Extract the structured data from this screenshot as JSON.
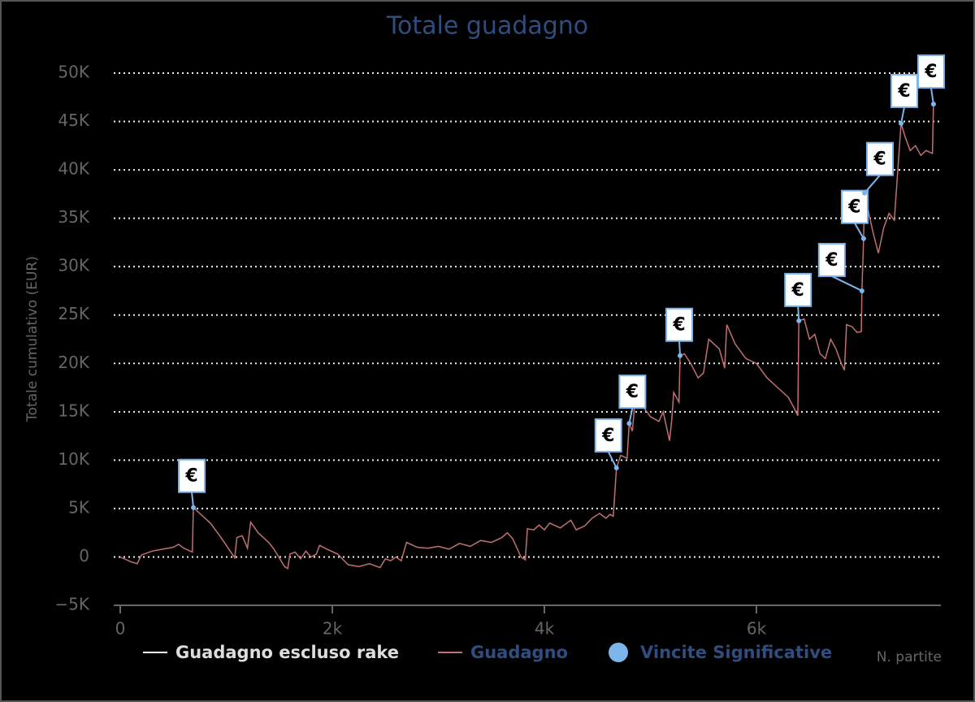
{
  "chart_data": {
    "type": "line",
    "title": "Totale guadagno",
    "y_axis_label": "Totale cumulativo (EUR)",
    "x_axis_label": "N. partite",
    "xlim": [
      0,
      7740
    ],
    "xticks": [
      0,
      {
        "value": 2000,
        "label": "2k"
      },
      {
        "value": 4000,
        "label": "4k"
      },
      {
        "value": 6000,
        "label": "6k"
      }
    ],
    "ylim": [
      -5000,
      50000
    ],
    "yticks": [
      {
        "value": -5000,
        "label": "−5K"
      },
      0,
      {
        "value": 5000,
        "label": "5K"
      },
      {
        "value": 10000,
        "label": "10K"
      },
      {
        "value": 15000,
        "label": "15K"
      },
      {
        "value": 20000,
        "label": "20K"
      },
      {
        "value": 25000,
        "label": "25K"
      },
      {
        "value": 30000,
        "label": "30K"
      },
      {
        "value": 35000,
        "label": "35K"
      },
      {
        "value": 40000,
        "label": "40K"
      },
      {
        "value": 45000,
        "label": "45K"
      },
      {
        "value": 50000,
        "label": "50K"
      }
    ],
    "grid": true,
    "series": [
      {
        "name": "Guadagno escluso rake",
        "color": "#ffffff",
        "visible": false
      },
      {
        "name": "Guadagno",
        "color": "#c07070",
        "x": [
          0,
          100,
          160,
          200,
          300,
          400,
          500,
          550,
          600,
          680,
          690,
          750,
          850,
          950,
          1000,
          1080,
          1100,
          1150,
          1200,
          1230,
          1300,
          1400,
          1450,
          1500,
          1550,
          1580,
          1600,
          1650,
          1700,
          1750,
          1800,
          1850,
          1880,
          1950,
          2050,
          2150,
          2250,
          2350,
          2450,
          2500,
          2550,
          2600,
          2650,
          2700,
          2800,
          2900,
          3000,
          3100,
          3200,
          3300,
          3400,
          3500,
          3600,
          3650,
          3700,
          3780,
          3820,
          3840,
          3900,
          3950,
          4000,
          4050,
          4150,
          4250,
          4300,
          4380,
          4450,
          4520,
          4580,
          4620,
          4650,
          4680,
          4720,
          4780,
          4800,
          4830,
          4850,
          4900,
          5000,
          5080,
          5120,
          5180,
          5200,
          5220,
          5270,
          5280,
          5320,
          5380,
          5450,
          5500,
          5550,
          5650,
          5700,
          5720,
          5800,
          5900,
          6000,
          6100,
          6200,
          6300,
          6350,
          6390,
          6400,
          6450,
          6500,
          6550,
          6600,
          6650,
          6700,
          6750,
          6800,
          6830,
          6850,
          6900,
          6950,
          6989,
          6995,
          7011,
          7019,
          7050,
          7100,
          7150,
          7200,
          7250,
          7300,
          7364,
          7400,
          7450,
          7500,
          7550,
          7600,
          7660,
          7670
        ],
        "values": [
          0,
          -500,
          -700,
          200,
          600,
          800,
          1000,
          1300,
          900,
          500,
          5100,
          4500,
          3500,
          2000,
          1200,
          -100,
          2000,
          2200,
          900,
          3600,
          2500,
          1500,
          800,
          -100,
          -1000,
          -1200,
          300,
          500,
          -200,
          600,
          0,
          300,
          1200,
          800,
          300,
          -800,
          -1000,
          -700,
          -1100,
          -200,
          -400,
          0,
          -400,
          1500,
          1000,
          900,
          1100,
          800,
          1400,
          1100,
          1700,
          1500,
          2000,
          2500,
          1900,
          0,
          -300,
          2900,
          2800,
          3300,
          2800,
          3500,
          3000,
          3800,
          2800,
          3200,
          4000,
          4500,
          4000,
          4400,
          4200,
          9200,
          10500,
          10200,
          13800,
          13000,
          15500,
          16000,
          14500,
          14000,
          15000,
          12000,
          14000,
          17000,
          16000,
          20800,
          21000,
          20000,
          18500,
          19000,
          22500,
          21500,
          19500,
          24000,
          22000,
          20500,
          20000,
          18500,
          17500,
          16500,
          15500,
          14600,
          24400,
          24600,
          22500,
          23000,
          21000,
          20500,
          22500,
          21500,
          20000,
          19300,
          24000,
          23800,
          23200,
          23300,
          27500,
          32900,
          37600,
          36000,
          33500,
          31400,
          34000,
          35500,
          34800,
          44800,
          43500,
          42000,
          42500,
          41500,
          42000,
          41700,
          46800
        ]
      },
      {
        "name": "Vincite Significative",
        "color": "#7cb5ec",
        "type": "scatter",
        "x": [
          690,
          4680,
          4800,
          5280,
          6400,
          6995,
          7011,
          7019,
          7364,
          7670
        ],
        "values": [
          5100,
          9200,
          13800,
          20800,
          24400,
          27500,
          32900,
          37600,
          44800,
          46800
        ],
        "annotations": [
          "€",
          "€",
          "€",
          "€",
          "€",
          "€",
          "€",
          "€",
          "€",
          "€"
        ]
      }
    ]
  }
}
